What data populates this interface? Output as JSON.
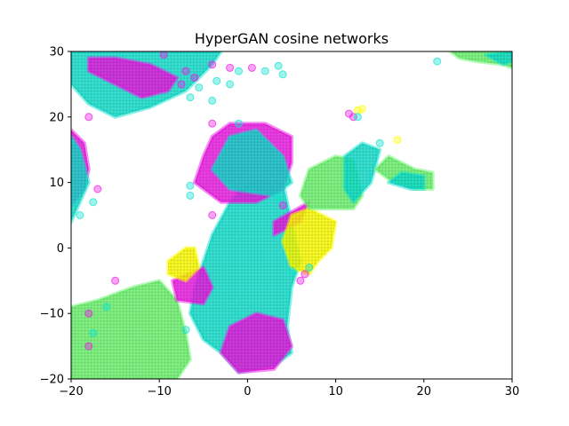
{
  "chart_data": {
    "type": "scatter",
    "title": "HyperGAN cosine networks",
    "xlabel": "",
    "ylabel": "",
    "xlim": [
      -20,
      30
    ],
    "ylim": [
      -20,
      30
    ],
    "xticks": [
      -20,
      -10,
      0,
      10,
      20,
      30
    ],
    "yticks": [
      -20,
      -10,
      0,
      10,
      20,
      30
    ],
    "grid": false,
    "marker": "circle",
    "alpha": 0.4,
    "colors": {
      "cyan": "#12e2cf",
      "green": "#6cf66f",
      "magenta": "#ee1be6",
      "yellow": "#ffff00"
    },
    "regions": [
      {
        "color": "green",
        "shape": "polygon",
        "points": [
          [
            -20,
            -9
          ],
          [
            -17,
            -8
          ],
          [
            -13,
            -6
          ],
          [
            -10,
            -5
          ],
          [
            -8,
            -8
          ],
          [
            -7,
            -13
          ],
          [
            -6.5,
            -17
          ],
          [
            -8,
            -20
          ],
          [
            -20,
            -20
          ]
        ]
      },
      {
        "color": "cyan",
        "shape": "polygon",
        "points": [
          [
            -4,
            2
          ],
          [
            -2,
            7
          ],
          [
            0,
            10
          ],
          [
            4,
            10
          ],
          [
            5,
            4
          ],
          [
            6,
            -2
          ],
          [
            5,
            -6
          ],
          [
            4.5,
            -12
          ],
          [
            5,
            -16
          ],
          [
            3,
            -18
          ],
          [
            -1,
            -19
          ],
          [
            -3,
            -16
          ],
          [
            -5,
            -14
          ],
          [
            -6.5,
            -10
          ],
          [
            -6,
            -6
          ],
          [
            -5,
            -2
          ]
        ]
      },
      {
        "color": "magenta",
        "shape": "polygon",
        "points": [
          [
            -5,
            14
          ],
          [
            -4,
            17
          ],
          [
            -2,
            19
          ],
          [
            2,
            19
          ],
          [
            5,
            17
          ],
          [
            5,
            13
          ],
          [
            4,
            9
          ],
          [
            1,
            7
          ],
          [
            -3,
            7
          ],
          [
            -6,
            10
          ]
        ]
      },
      {
        "color": "cyan",
        "shape": "polygon",
        "points": [
          [
            -2,
            17
          ],
          [
            1,
            18
          ],
          [
            4,
            14
          ],
          [
            5,
            10
          ],
          [
            3,
            8
          ],
          [
            -2,
            9
          ],
          [
            -4,
            12
          ]
        ]
      },
      {
        "color": "magenta",
        "shape": "polygon",
        "points": [
          [
            3,
            2
          ],
          [
            6,
            4
          ],
          [
            7,
            7
          ],
          [
            5,
            5.5
          ],
          [
            3,
            4
          ]
        ]
      },
      {
        "color": "magenta",
        "shape": "polygon",
        "points": [
          [
            -2,
            -12
          ],
          [
            1,
            -10
          ],
          [
            4,
            -11
          ],
          [
            5,
            -15
          ],
          [
            3,
            -18.5
          ],
          [
            -1,
            -19
          ],
          [
            -3,
            -16
          ]
        ]
      },
      {
        "color": "magenta",
        "shape": "polygon",
        "points": [
          [
            -8.5,
            -5
          ],
          [
            -5,
            -3
          ],
          [
            -4,
            -6
          ],
          [
            -5,
            -8.5
          ],
          [
            -8,
            -8
          ]
        ]
      },
      {
        "color": "yellow",
        "shape": "polygon",
        "points": [
          [
            -9,
            -2
          ],
          [
            -7,
            0
          ],
          [
            -6,
            0
          ],
          [
            -5.5,
            -3
          ],
          [
            -7,
            -5
          ],
          [
            -9,
            -4
          ]
        ]
      },
      {
        "color": "yellow",
        "shape": "polygon",
        "points": [
          [
            4,
            1
          ],
          [
            5,
            5
          ],
          [
            7,
            6
          ],
          [
            10,
            4
          ],
          [
            9.5,
            0
          ],
          [
            8,
            -2
          ],
          [
            7,
            -4
          ],
          [
            5,
            -3
          ]
        ]
      },
      {
        "color": "green",
        "shape": "polygon",
        "points": [
          [
            6,
            8
          ],
          [
            7,
            12
          ],
          [
            10,
            14
          ],
          [
            12,
            13.5
          ],
          [
            13,
            8
          ],
          [
            12,
            6
          ],
          [
            7,
            6
          ]
        ]
      },
      {
        "color": "cyan",
        "shape": "polygon",
        "points": [
          [
            11,
            9
          ],
          [
            11,
            14
          ],
          [
            13,
            16
          ],
          [
            15,
            15
          ],
          [
            14,
            10
          ],
          [
            12,
            7
          ]
        ]
      },
      {
        "color": "green",
        "shape": "polygon",
        "points": [
          [
            14.5,
            12
          ],
          [
            16,
            14
          ],
          [
            17.5,
            13
          ],
          [
            19,
            12
          ],
          [
            21,
            11.5
          ],
          [
            21,
            9
          ],
          [
            19,
            9
          ],
          [
            16,
            10.5
          ]
        ]
      },
      {
        "color": "cyan",
        "shape": "polygon",
        "points": [
          [
            16,
            10
          ],
          [
            17.5,
            11.5
          ],
          [
            20,
            11
          ],
          [
            20,
            9
          ],
          [
            18.5,
            9
          ]
        ]
      },
      {
        "color": "cyan",
        "shape": "polygon",
        "points": [
          [
            -20,
            30
          ],
          [
            -20,
            25
          ],
          [
            -18,
            22
          ],
          [
            -15,
            20
          ],
          [
            -11,
            21.5
          ],
          [
            -7,
            24
          ],
          [
            -4,
            28
          ],
          [
            -3,
            30
          ]
        ]
      },
      {
        "color": "magenta",
        "shape": "polygon",
        "points": [
          [
            -18,
            27
          ],
          [
            -15,
            25
          ],
          [
            -12,
            23
          ],
          [
            -9,
            24
          ],
          [
            -8,
            26
          ],
          [
            -11,
            28
          ],
          [
            -15,
            29
          ],
          [
            -18,
            29
          ]
        ]
      },
      {
        "color": "magenta",
        "shape": "polygon",
        "points": [
          [
            -20,
            18
          ],
          [
            -18.5,
            16
          ],
          [
            -18,
            12
          ],
          [
            -18.5,
            9
          ],
          [
            -20,
            6.5
          ]
        ]
      },
      {
        "color": "cyan",
        "shape": "polygon",
        "points": [
          [
            -20,
            17
          ],
          [
            -19,
            15
          ],
          [
            -18,
            10
          ],
          [
            -19,
            7
          ],
          [
            -20,
            4
          ]
        ]
      },
      {
        "color": "green",
        "shape": "polygon",
        "points": [
          [
            23,
            30
          ],
          [
            24,
            29
          ],
          [
            26,
            28.5
          ],
          [
            29,
            28
          ],
          [
            30,
            27.5
          ],
          [
            30,
            30
          ]
        ]
      },
      {
        "color": "cyan",
        "shape": "polygon",
        "points": [
          [
            27,
            29.5
          ],
          [
            29,
            28
          ],
          [
            30,
            28.5
          ],
          [
            30,
            30
          ]
        ]
      }
    ],
    "points": [
      {
        "x": -9.5,
        "y": 29.5,
        "color": "magenta"
      },
      {
        "x": -7,
        "y": 27,
        "color": "magenta"
      },
      {
        "x": -6,
        "y": 26,
        "color": "magenta"
      },
      {
        "x": -4,
        "y": 28,
        "color": "magenta"
      },
      {
        "x": -2,
        "y": 27.5,
        "color": "magenta"
      },
      {
        "x": -1,
        "y": 27,
        "color": "cyan"
      },
      {
        "x": 0.5,
        "y": 27.5,
        "color": "magenta"
      },
      {
        "x": 2,
        "y": 27,
        "color": "cyan"
      },
      {
        "x": 3.5,
        "y": 27.8,
        "color": "cyan"
      },
      {
        "x": 4,
        "y": 26.5,
        "color": "cyan"
      },
      {
        "x": -2,
        "y": 25,
        "color": "cyan"
      },
      {
        "x": -3.5,
        "y": 25.5,
        "color": "cyan"
      },
      {
        "x": -5.5,
        "y": 24.5,
        "color": "cyan"
      },
      {
        "x": -6.5,
        "y": 23,
        "color": "cyan"
      },
      {
        "x": -4,
        "y": 22.5,
        "color": "cyan"
      },
      {
        "x": -7.5,
        "y": 25,
        "color": "magenta"
      },
      {
        "x": 12,
        "y": 20,
        "color": "magenta"
      },
      {
        "x": 11.5,
        "y": 20.5,
        "color": "magenta"
      },
      {
        "x": 12.5,
        "y": 21,
        "color": "yellow"
      },
      {
        "x": 13,
        "y": 21.2,
        "color": "yellow"
      },
      {
        "x": 12.5,
        "y": 20,
        "color": "cyan"
      },
      {
        "x": 17,
        "y": 16.5,
        "color": "yellow"
      },
      {
        "x": 15,
        "y": 16,
        "color": "cyan"
      },
      {
        "x": 21.5,
        "y": 28.5,
        "color": "cyan"
      },
      {
        "x": -4,
        "y": 19,
        "color": "magenta"
      },
      {
        "x": -1,
        "y": 19,
        "color": "cyan"
      },
      {
        "x": -18,
        "y": 20,
        "color": "magenta"
      },
      {
        "x": -19,
        "y": 5,
        "color": "cyan"
      },
      {
        "x": -17,
        "y": 9,
        "color": "magenta"
      },
      {
        "x": -17.5,
        "y": 7,
        "color": "cyan"
      },
      {
        "x": -15,
        "y": -5,
        "color": "magenta"
      },
      {
        "x": -18,
        "y": -10,
        "color": "magenta"
      },
      {
        "x": -17.5,
        "y": -13,
        "color": "cyan"
      },
      {
        "x": -16,
        "y": -9,
        "color": "cyan"
      },
      {
        "x": -18,
        "y": -15,
        "color": "magenta"
      },
      {
        "x": -7,
        "y": -12.5,
        "color": "cyan"
      },
      {
        "x": 6.5,
        "y": -4,
        "color": "magenta"
      },
      {
        "x": 6,
        "y": -5,
        "color": "magenta"
      },
      {
        "x": 7,
        "y": -3,
        "color": "cyan"
      },
      {
        "x": 5,
        "y": -3.5,
        "color": "cyan"
      },
      {
        "x": -4,
        "y": 5,
        "color": "magenta"
      },
      {
        "x": -6.5,
        "y": 8,
        "color": "cyan"
      },
      {
        "x": -6.5,
        "y": 9.5,
        "color": "cyan"
      },
      {
        "x": 4,
        "y": 6.5,
        "color": "magenta"
      },
      {
        "x": 3.5,
        "y": 7.5,
        "color": "cyan"
      }
    ]
  }
}
